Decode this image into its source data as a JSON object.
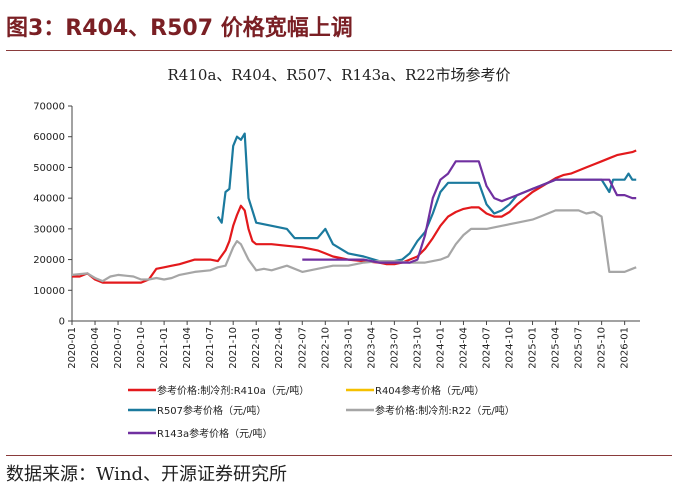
{
  "figure": {
    "title": "图3：R404、R507 价格宽幅上调",
    "source": "数据来源：Wind、开源证券研究所"
  },
  "chart_data": {
    "type": "line",
    "title": "R410a、R404、R507、R143a、R22市场参考价",
    "xlabel": "",
    "ylabel": "",
    "ylim": [
      0,
      70000
    ],
    "yticks": [
      0,
      10000,
      20000,
      30000,
      40000,
      50000,
      60000,
      70000
    ],
    "xticks": [
      "2020-01",
      "2020-04",
      "2020-07",
      "2020-10",
      "2021-01",
      "2021-04",
      "2021-07",
      "2021-10",
      "2022-01",
      "2022-04",
      "2022-07",
      "2022-10",
      "2023-01",
      "2023-04",
      "2023-07",
      "2023-10",
      "2024-01",
      "2024-04",
      "2024-07",
      "2024-10",
      "2025-01",
      "2025-04",
      "2025-07",
      "2025-10",
      "2026-01"
    ],
    "xrange": [
      0,
      74
    ],
    "grid": false,
    "legend_position": "bottom",
    "series": [
      {
        "name": "参考价格:制冷剂:R410a（元/吨）",
        "color": "#e3191c",
        "points": [
          [
            0,
            14500
          ],
          [
            1,
            14500
          ],
          [
            2,
            15500
          ],
          [
            3,
            13500
          ],
          [
            4,
            12500
          ],
          [
            6,
            12500
          ],
          [
            9,
            12500
          ],
          [
            10,
            13500
          ],
          [
            11,
            17000
          ],
          [
            12,
            17500
          ],
          [
            13,
            18000
          ],
          [
            14,
            18500
          ],
          [
            16,
            20000
          ],
          [
            17,
            20000
          ],
          [
            18,
            20000
          ],
          [
            19,
            19500
          ],
          [
            20,
            23000
          ],
          [
            20.5,
            26000
          ],
          [
            21,
            31000
          ],
          [
            21.5,
            34500
          ],
          [
            22,
            37500
          ],
          [
            22.5,
            36000
          ],
          [
            23,
            30000
          ],
          [
            23.5,
            26000
          ],
          [
            24,
            25000
          ],
          [
            26,
            25000
          ],
          [
            28,
            24500
          ],
          [
            30,
            24000
          ],
          [
            32,
            23000
          ],
          [
            33,
            22000
          ],
          [
            34,
            21000
          ],
          [
            36,
            20000
          ],
          [
            38,
            19500
          ],
          [
            40,
            19000
          ],
          [
            41,
            18500
          ],
          [
            42,
            18500
          ],
          [
            43,
            19000
          ],
          [
            44,
            20000
          ],
          [
            45,
            21000
          ],
          [
            46,
            23500
          ],
          [
            47,
            27000
          ],
          [
            48,
            31000
          ],
          [
            49,
            34000
          ],
          [
            50,
            35500
          ],
          [
            51,
            36500
          ],
          [
            52,
            37000
          ],
          [
            53,
            37000
          ],
          [
            54,
            35000
          ],
          [
            55,
            34000
          ],
          [
            56,
            34000
          ],
          [
            57,
            35500
          ],
          [
            58,
            38000
          ],
          [
            59,
            40000
          ],
          [
            60,
            42000
          ],
          [
            61,
            43500
          ],
          [
            62,
            45000
          ],
          [
            63,
            46500
          ],
          [
            64,
            47500
          ],
          [
            65,
            48000
          ],
          [
            66,
            49000
          ],
          [
            67,
            50000
          ],
          [
            68,
            51000
          ],
          [
            69,
            52000
          ],
          [
            70,
            53000
          ],
          [
            71,
            54000
          ],
          [
            72,
            54500
          ],
          [
            73,
            55000
          ],
          [
            73.5,
            55500
          ]
        ]
      },
      {
        "name": "R404参考价格（元/吨）",
        "color": "#f5c000",
        "points": []
      },
      {
        "name": "R507参考价格（元/吨）",
        "color": "#1b7a9e",
        "points": [
          [
            19,
            34000
          ],
          [
            19.5,
            32000
          ],
          [
            20,
            42000
          ],
          [
            20.5,
            43000
          ],
          [
            21,
            57000
          ],
          [
            21.5,
            60000
          ],
          [
            22,
            59000
          ],
          [
            22.5,
            61000
          ],
          [
            23,
            40000
          ],
          [
            23.5,
            36000
          ],
          [
            24,
            32000
          ],
          [
            26,
            31000
          ],
          [
            28,
            30000
          ],
          [
            29,
            27000
          ],
          [
            30,
            27000
          ],
          [
            32,
            27000
          ],
          [
            33,
            30000
          ],
          [
            34,
            25000
          ],
          [
            36,
            22000
          ],
          [
            38,
            21000
          ],
          [
            40,
            19500
          ],
          [
            41,
            19000
          ],
          [
            42,
            19500
          ],
          [
            43,
            20000
          ],
          [
            44,
            22000
          ],
          [
            45,
            26000
          ],
          [
            46,
            29000
          ],
          [
            47,
            35000
          ],
          [
            48,
            42000
          ],
          [
            49,
            45000
          ],
          [
            50,
            45000
          ],
          [
            52,
            45000
          ],
          [
            53,
            45000
          ],
          [
            54,
            38000
          ],
          [
            55,
            35000
          ],
          [
            56,
            36000
          ],
          [
            57,
            38000
          ],
          [
            58,
            41000
          ],
          [
            59,
            42000
          ],
          [
            60,
            43000
          ],
          [
            61,
            44000
          ],
          [
            62,
            45000
          ],
          [
            63,
            46000
          ],
          [
            64,
            46000
          ],
          [
            66,
            46000
          ],
          [
            68,
            46000
          ],
          [
            69,
            46000
          ],
          [
            70,
            42000
          ],
          [
            70.5,
            46000
          ],
          [
            71,
            46000
          ],
          [
            72,
            46000
          ],
          [
            72.5,
            48000
          ],
          [
            73,
            46000
          ],
          [
            73.5,
            46000
          ]
        ]
      },
      {
        "name": "参考价格:制冷剂:R22（元/吨）",
        "color": "#a6a6a6",
        "points": [
          [
            0,
            15000
          ],
          [
            2,
            15500
          ],
          [
            3,
            14000
          ],
          [
            4,
            13000
          ],
          [
            5,
            14500
          ],
          [
            6,
            15000
          ],
          [
            8,
            14500
          ],
          [
            9,
            13500
          ],
          [
            10,
            13500
          ],
          [
            11,
            14000
          ],
          [
            12,
            13500
          ],
          [
            13,
            14000
          ],
          [
            14,
            15000
          ],
          [
            16,
            16000
          ],
          [
            18,
            16500
          ],
          [
            19,
            17500
          ],
          [
            20,
            18000
          ],
          [
            21,
            24000
          ],
          [
            21.5,
            26000
          ],
          [
            22,
            25000
          ],
          [
            23,
            20000
          ],
          [
            24,
            16500
          ],
          [
            25,
            17000
          ],
          [
            26,
            16500
          ],
          [
            28,
            18000
          ],
          [
            30,
            16000
          ],
          [
            32,
            17000
          ],
          [
            34,
            18000
          ],
          [
            36,
            18000
          ],
          [
            38,
            19000
          ],
          [
            40,
            19500
          ],
          [
            42,
            19500
          ],
          [
            44,
            19000
          ],
          [
            46,
            19000
          ],
          [
            48,
            20000
          ],
          [
            49,
            21000
          ],
          [
            50,
            25000
          ],
          [
            51,
            28000
          ],
          [
            52,
            30000
          ],
          [
            54,
            30000
          ],
          [
            56,
            31000
          ],
          [
            58,
            32000
          ],
          [
            60,
            33000
          ],
          [
            61,
            34000
          ],
          [
            62,
            35000
          ],
          [
            63,
            36000
          ],
          [
            64,
            36000
          ],
          [
            66,
            36000
          ],
          [
            67,
            35000
          ],
          [
            68,
            35500
          ],
          [
            69,
            34000
          ],
          [
            70,
            16000
          ],
          [
            71,
            16000
          ],
          [
            72,
            16000
          ],
          [
            73,
            17000
          ],
          [
            73.5,
            17500
          ]
        ]
      },
      {
        "name": "R143a参考价格（元/吨）",
        "color": "#7030a0",
        "points": [
          [
            30,
            20000
          ],
          [
            32,
            20000
          ],
          [
            34,
            20000
          ],
          [
            36,
            20000
          ],
          [
            38,
            20000
          ],
          [
            40,
            19000
          ],
          [
            42,
            19000
          ],
          [
            44,
            19000
          ],
          [
            45,
            20000
          ],
          [
            46,
            28000
          ],
          [
            47,
            40000
          ],
          [
            48,
            46000
          ],
          [
            49,
            48000
          ],
          [
            50,
            52000
          ],
          [
            52,
            52000
          ],
          [
            53,
            52000
          ],
          [
            54,
            44000
          ],
          [
            55,
            40000
          ],
          [
            56,
            39000
          ],
          [
            57,
            40000
          ],
          [
            58,
            41000
          ],
          [
            59,
            42000
          ],
          [
            60,
            43000
          ],
          [
            61,
            44000
          ],
          [
            62,
            45000
          ],
          [
            63,
            46000
          ],
          [
            64,
            46000
          ],
          [
            66,
            46000
          ],
          [
            68,
            46000
          ],
          [
            70,
            46000
          ],
          [
            71,
            41000
          ],
          [
            72,
            41000
          ],
          [
            73,
            40000
          ],
          [
            73.5,
            40000
          ]
        ]
      }
    ]
  }
}
